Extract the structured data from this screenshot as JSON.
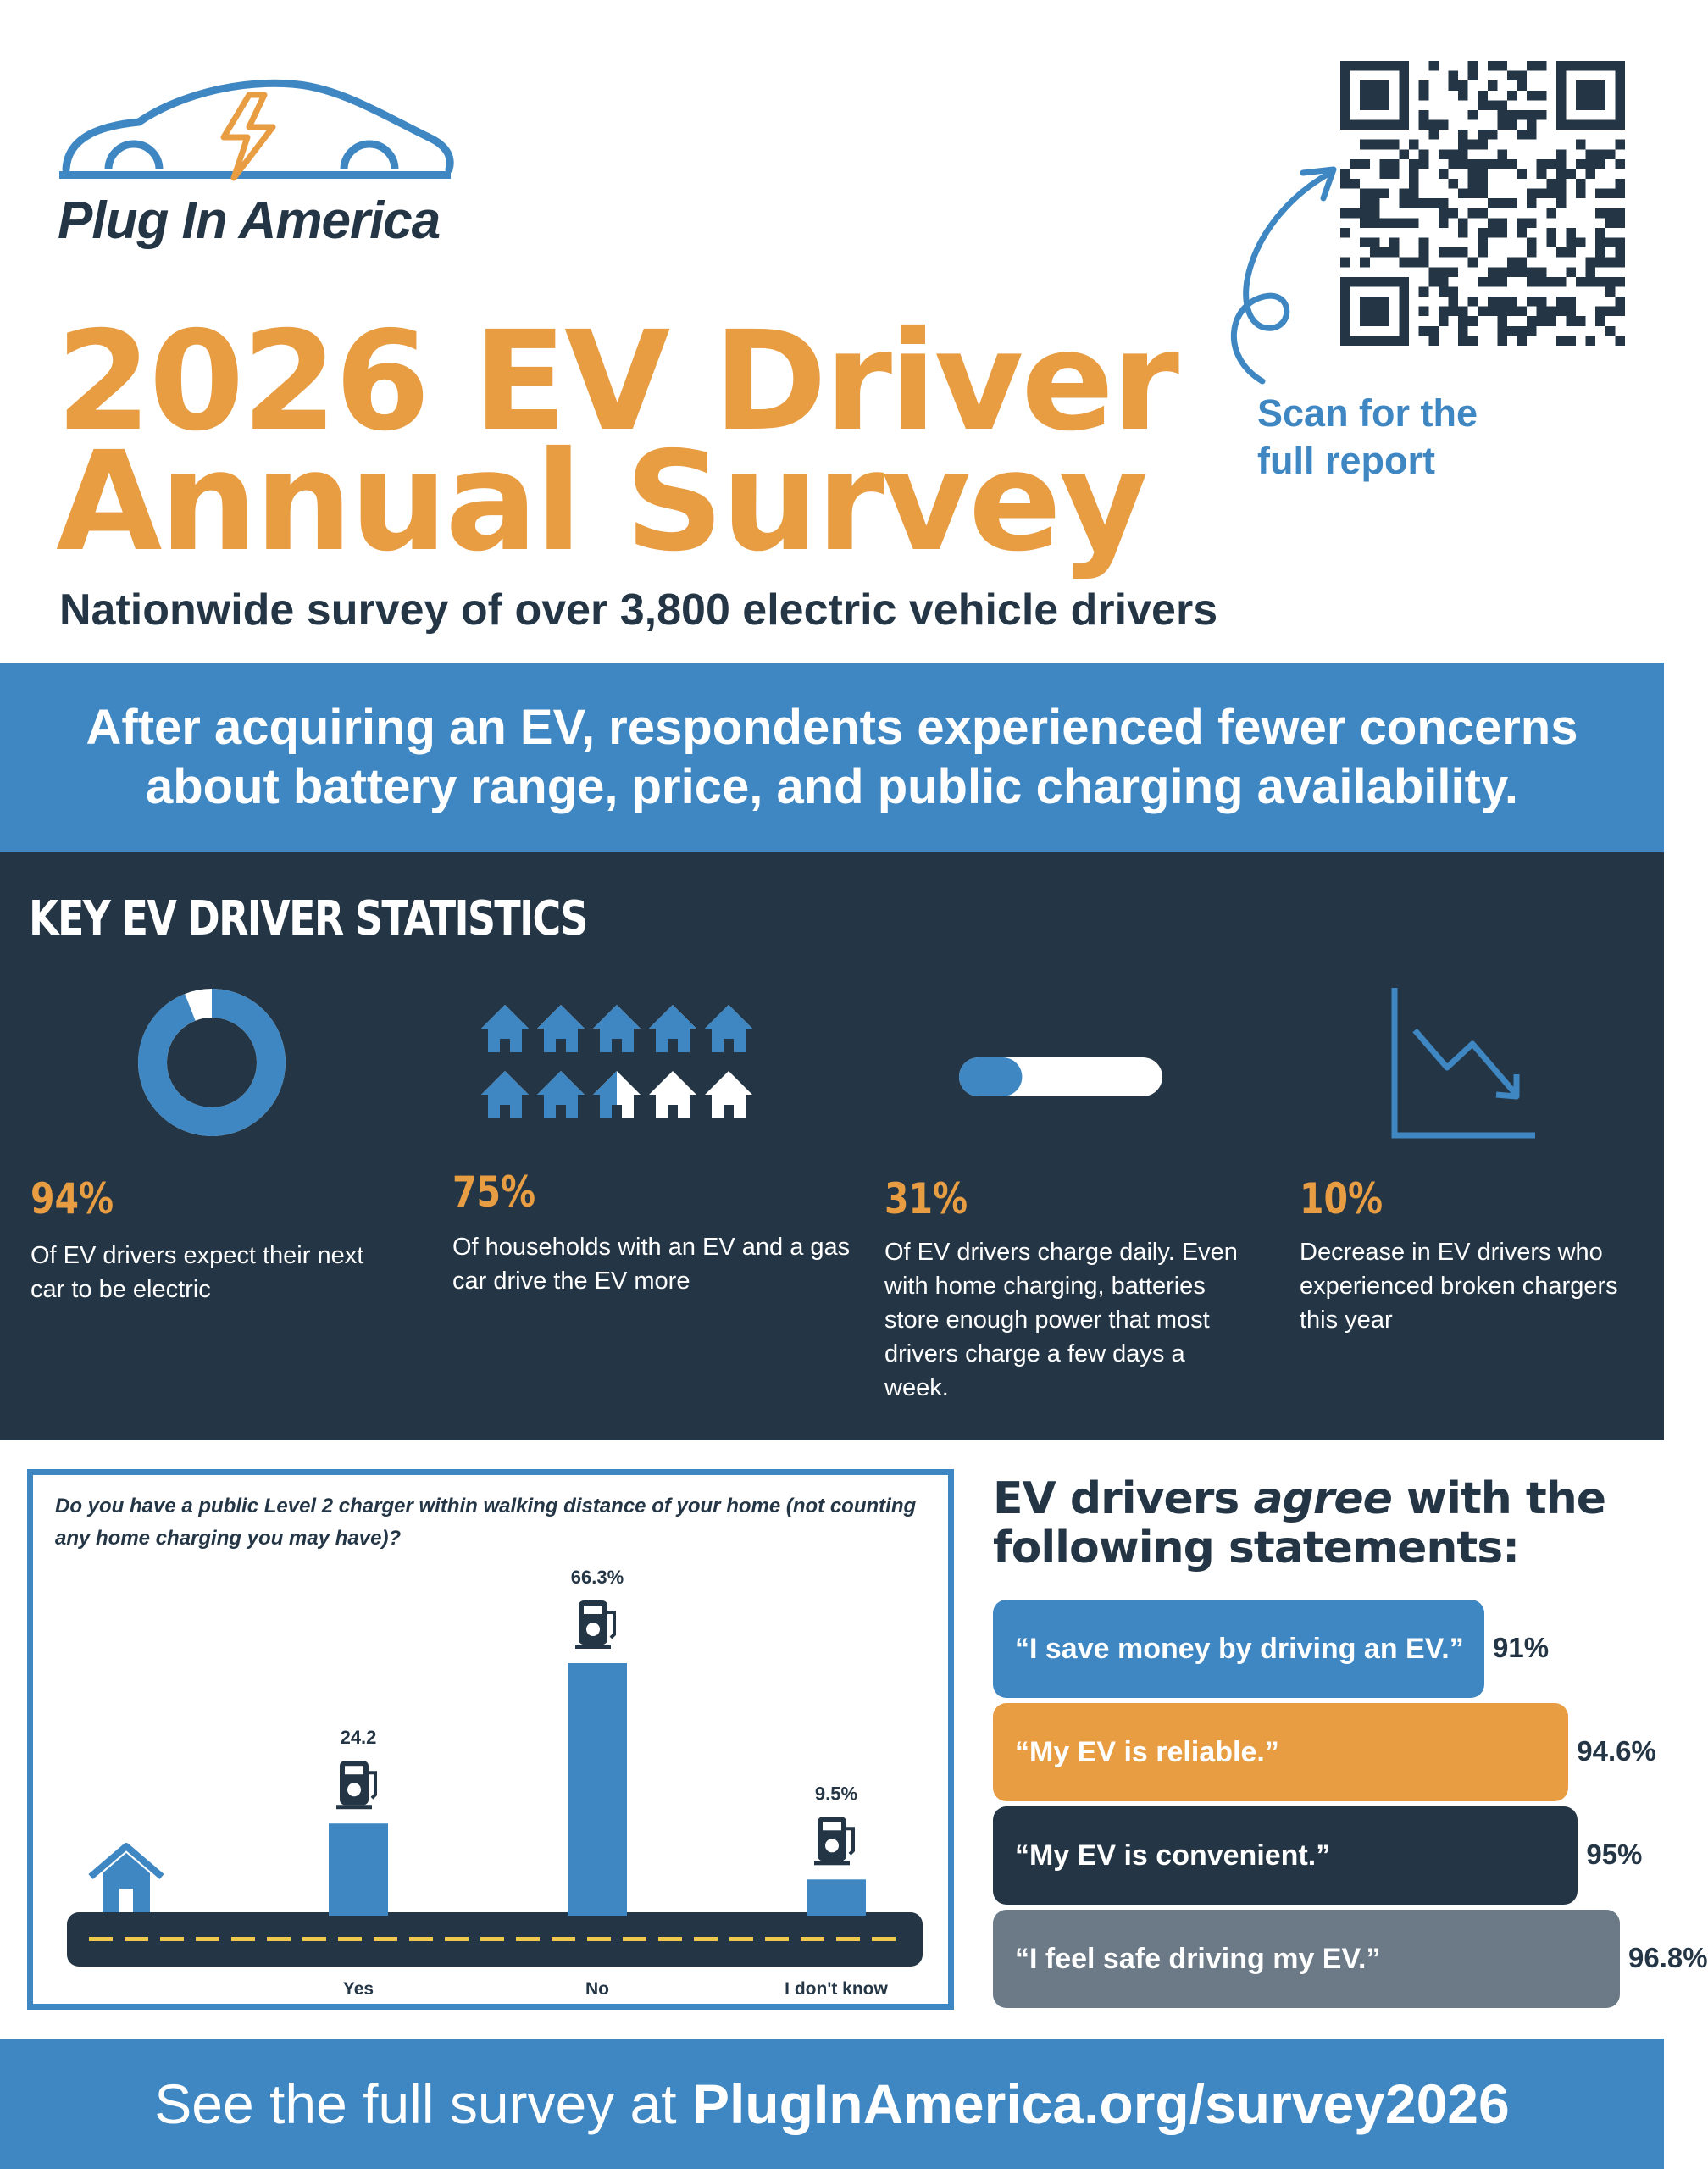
{
  "brand": {
    "name": "Plug In America"
  },
  "header": {
    "title_line1": "2026 EV Driver",
    "title_line2": "Annual Survey",
    "subtitle": "Nationwide survey of over 3,800 electric vehicle drivers",
    "scan_text": "Scan for the full report"
  },
  "banner": {
    "text": "After acquiring an EV, respondents experienced fewer concerns about battery range, price, and public charging availability."
  },
  "stats": {
    "heading": "KEY EV DRIVER STATISTICS",
    "items": [
      {
        "value": "94%",
        "text": "Of EV drivers expect their next car to be electric",
        "icon": "donut-chart-icon",
        "fraction": 0.94
      },
      {
        "value": "75%",
        "text": "Of households with an EV and a gas car drive the EV more",
        "icon": "houses-icon",
        "fraction": 0.75
      },
      {
        "value": "31%",
        "text": "Of EV drivers charge daily. Even with home charging, batteries store enough power that most drivers charge a few days a week.",
        "icon": "progress-bar-icon",
        "fraction": 0.31
      },
      {
        "value": "10%",
        "text": "Decrease in EV drivers who experienced broken chargers this year",
        "icon": "trend-down-icon"
      }
    ]
  },
  "chart_data": {
    "type": "bar",
    "title": "Do you have a public Level 2 charger within walking distance of your home (not counting any home charging you may have)?",
    "categories": [
      "Yes",
      "No",
      "I don't know"
    ],
    "values": [
      24.2,
      66.3,
      9.5
    ],
    "value_labels": [
      "24.2",
      "66.3%",
      "9.5%"
    ],
    "color": "#3f87c2",
    "icons": [
      "house-icon",
      "charger-icon",
      "road-icon"
    ]
  },
  "agree": {
    "title_pre": "EV drivers ",
    "title_em": "agree",
    "title_post": " with the following statements:",
    "items": [
      {
        "statement": "“I save money by driving an EV.”",
        "pct": "91%",
        "value": 91,
        "color": "#3f87c2"
      },
      {
        "statement": "“My EV is reliable.”",
        "pct": "94.6%",
        "value": 94.6,
        "color": "#e89d43"
      },
      {
        "statement": "“My EV is convenient.”",
        "pct": "95%",
        "value": 95,
        "color": "#243645"
      },
      {
        "statement": "“I feel safe driving my EV.”",
        "pct": "96.8%",
        "value": 96.8,
        "color": "#6b7a86"
      }
    ]
  },
  "footer": {
    "text_pre": "See the full survey at ",
    "url": "PlugInAmerica.org/survey2026"
  },
  "colors": {
    "blue": "#3f87c2",
    "orange": "#e89d43",
    "navy": "#243645",
    "gray": "#6b7a86",
    "yellow": "#f1c84b"
  }
}
